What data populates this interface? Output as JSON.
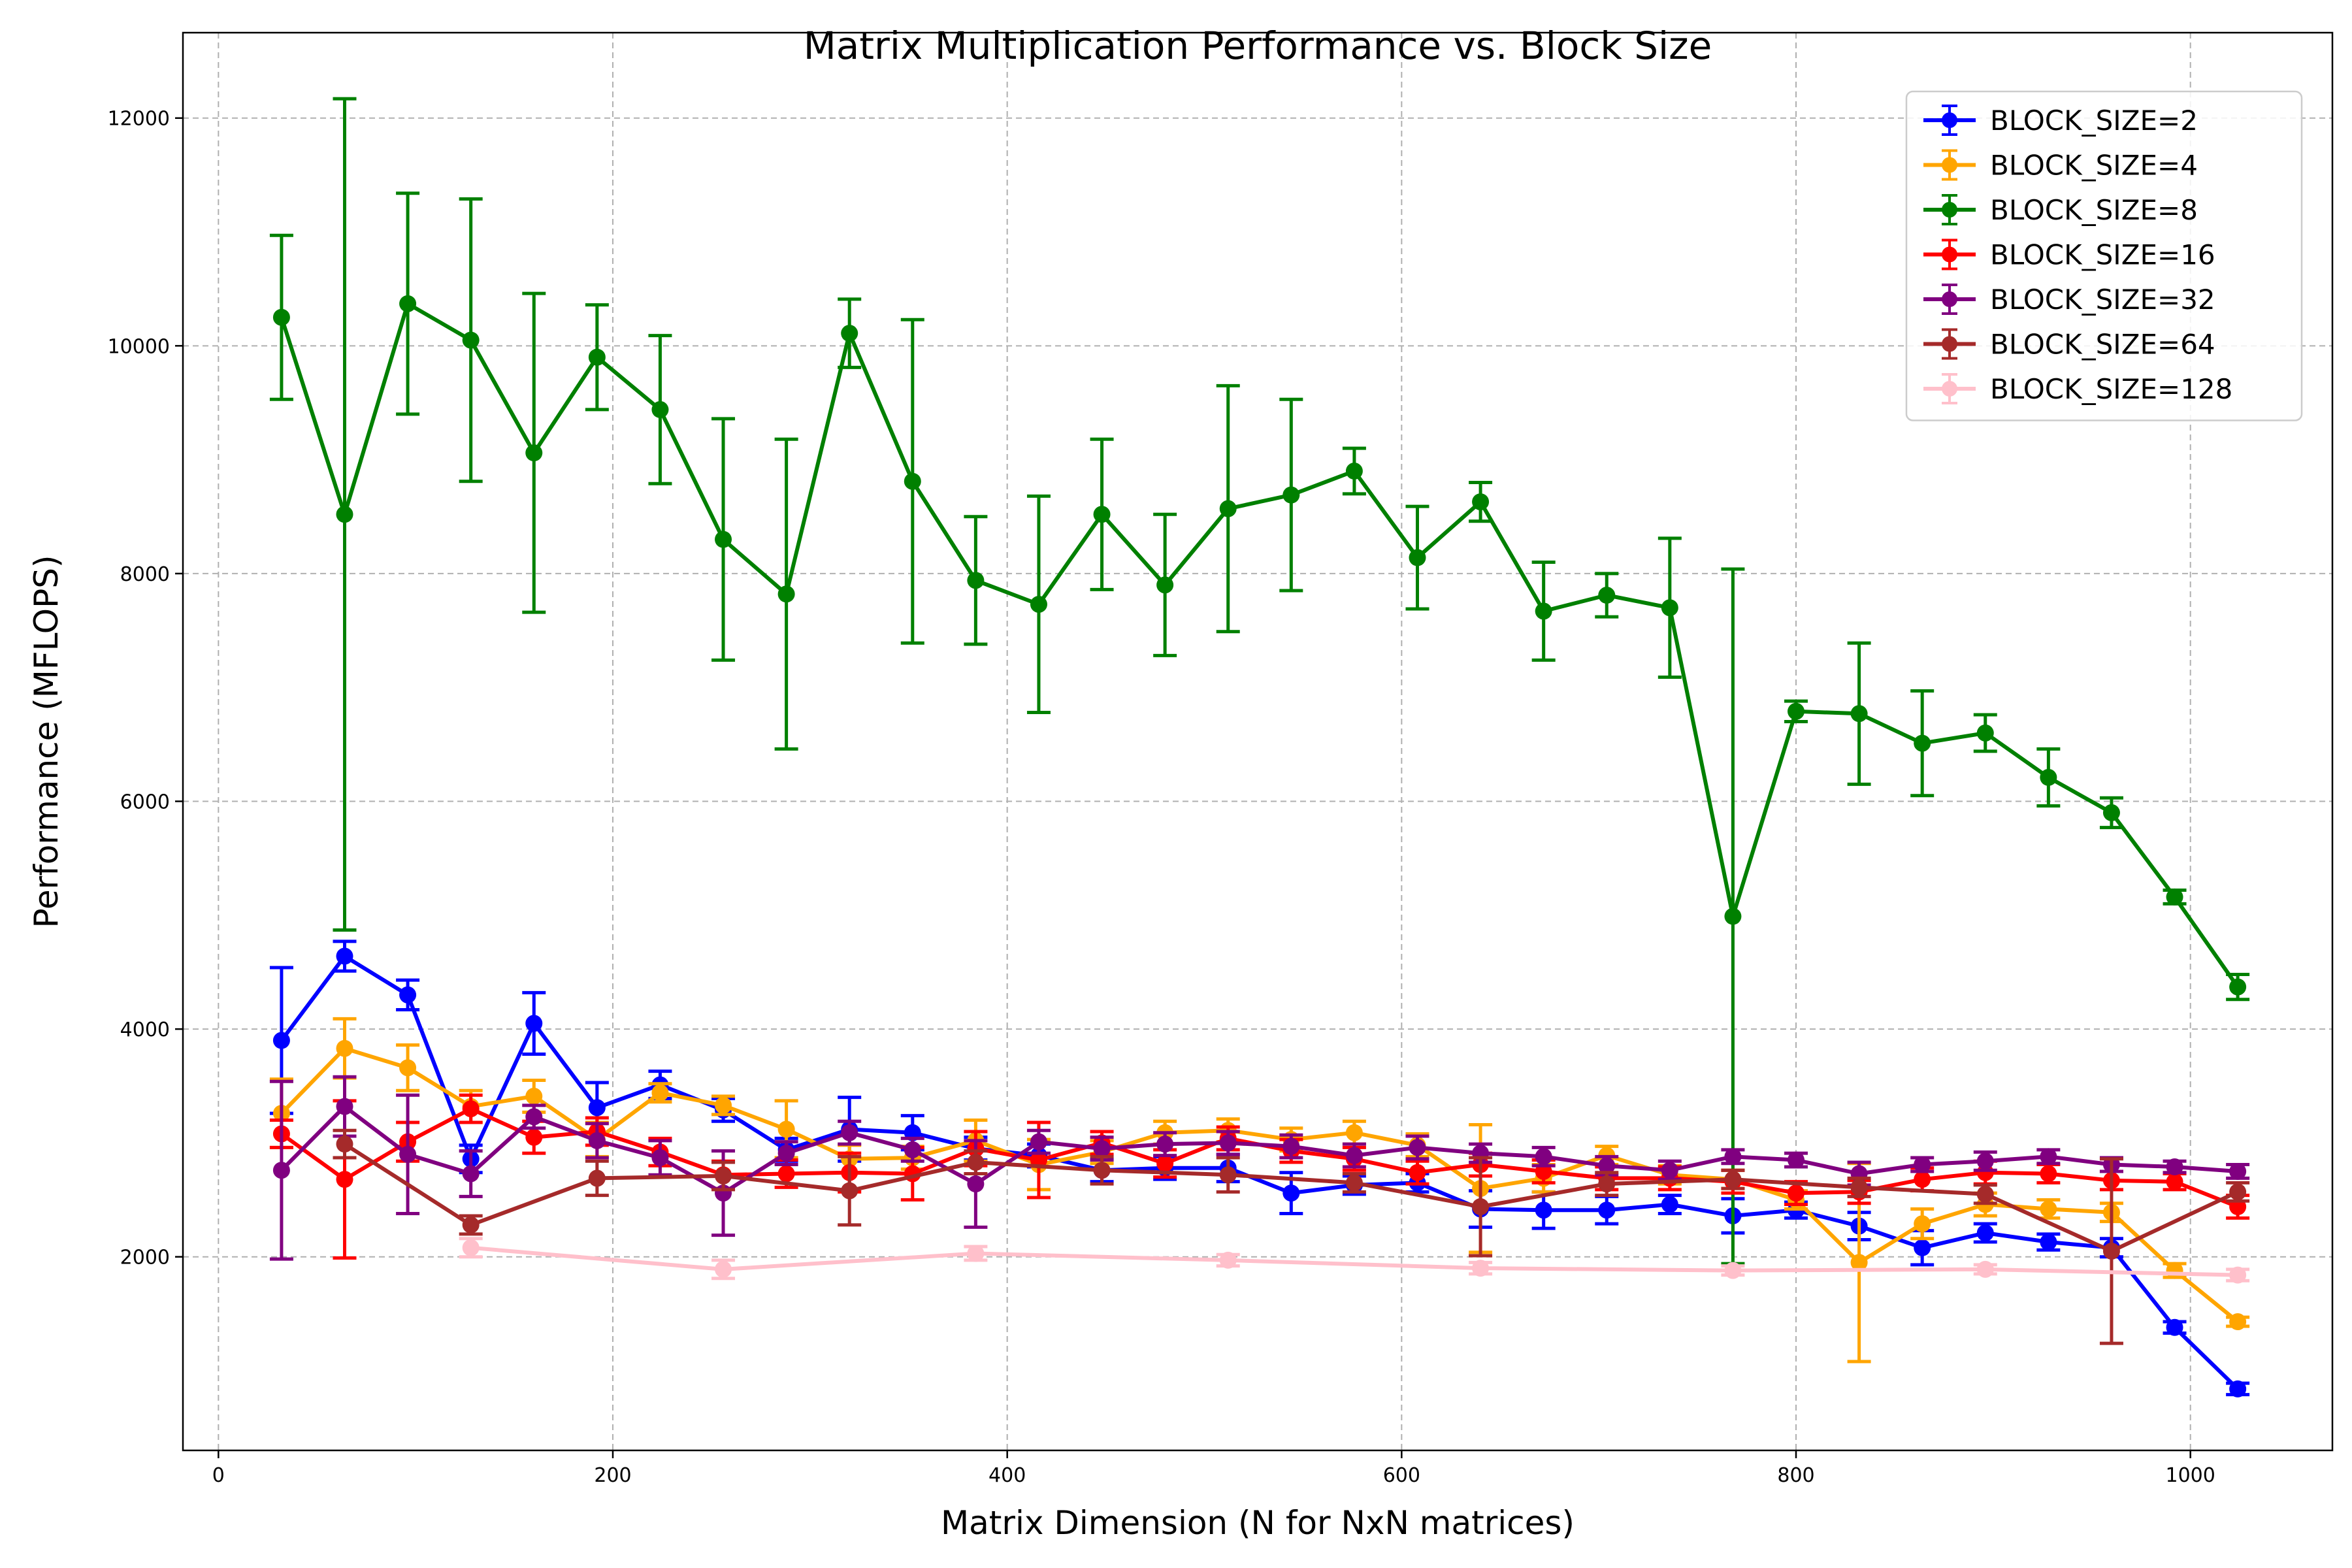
{
  "chart_data": {
    "type": "line",
    "title": "Matrix Multiplication Performance vs. Block Size",
    "xlabel": "Matrix Dimension (N for NxN matrices)",
    "ylabel": "Performance (MFLOPS)",
    "xlim": [
      -18,
      1072
    ],
    "ylim": [
      300,
      12750
    ],
    "xticks": [
      0,
      200,
      400,
      600,
      800,
      1000
    ],
    "yticks": [
      2000,
      4000,
      6000,
      8000,
      10000,
      12000
    ],
    "grid": true,
    "legend_position": "top-right",
    "error_bars": true,
    "series": [
      {
        "name": "BLOCK_SIZE=2",
        "color": "#0000ff",
        "points": [
          {
            "x": 32,
            "y": 3900,
            "err": 640
          },
          {
            "x": 64,
            "y": 4640,
            "err": 130
          },
          {
            "x": 96,
            "y": 4300,
            "err": 130
          },
          {
            "x": 128,
            "y": 2860,
            "err": 120
          },
          {
            "x": 160,
            "y": 4050,
            "err": 270
          },
          {
            "x": 192,
            "y": 3310,
            "err": 220
          },
          {
            "x": 224,
            "y": 3510,
            "err": 120
          },
          {
            "x": 256,
            "y": 3290,
            "err": 100
          },
          {
            "x": 288,
            "y": 2940,
            "err": 100
          },
          {
            "x": 320,
            "y": 3120,
            "err": 280
          },
          {
            "x": 352,
            "y": 3090,
            "err": 150
          },
          {
            "x": 384,
            "y": 2950,
            "err": 100
          },
          {
            "x": 416,
            "y": 2890,
            "err": 100
          },
          {
            "x": 448,
            "y": 2760,
            "err": 100
          },
          {
            "x": 480,
            "y": 2780,
            "err": 100
          },
          {
            "x": 512,
            "y": 2780,
            "err": 120
          },
          {
            "x": 544,
            "y": 2560,
            "err": 180
          },
          {
            "x": 576,
            "y": 2630,
            "err": 80
          },
          {
            "x": 608,
            "y": 2650,
            "err": 80
          },
          {
            "x": 640,
            "y": 2420,
            "err": 160
          },
          {
            "x": 672,
            "y": 2410,
            "err": 160
          },
          {
            "x": 704,
            "y": 2410,
            "err": 120
          },
          {
            "x": 736,
            "y": 2460,
            "err": 80
          },
          {
            "x": 768,
            "y": 2360,
            "err": 150
          },
          {
            "x": 800,
            "y": 2410,
            "err": 70
          },
          {
            "x": 832,
            "y": 2270,
            "err": 120
          },
          {
            "x": 864,
            "y": 2080,
            "err": 150
          },
          {
            "x": 896,
            "y": 2210,
            "err": 80
          },
          {
            "x": 928,
            "y": 2130,
            "err": 70
          },
          {
            "x": 960,
            "y": 2080,
            "err": 80
          },
          {
            "x": 992,
            "y": 1380,
            "err": 50
          },
          {
            "x": 1024,
            "y": 840,
            "err": 50
          }
        ]
      },
      {
        "name": "BLOCK_SIZE=4",
        "color": "#ffa500",
        "points": [
          {
            "x": 32,
            "y": 3260,
            "err": 300
          },
          {
            "x": 64,
            "y": 3830,
            "err": 260
          },
          {
            "x": 96,
            "y": 3660,
            "err": 200
          },
          {
            "x": 128,
            "y": 3320,
            "err": 140
          },
          {
            "x": 160,
            "y": 3410,
            "err": 140
          },
          {
            "x": 192,
            "y": 3030,
            "err": 150
          },
          {
            "x": 224,
            "y": 3440,
            "err": 80
          },
          {
            "x": 256,
            "y": 3330,
            "err": 80
          },
          {
            "x": 288,
            "y": 3120,
            "err": 250
          },
          {
            "x": 320,
            "y": 2860,
            "err": 120
          },
          {
            "x": 352,
            "y": 2870,
            "err": 100
          },
          {
            "x": 384,
            "y": 3020,
            "err": 180
          },
          {
            "x": 416,
            "y": 2810,
            "err": 220
          },
          {
            "x": 448,
            "y": 2920,
            "err": 100
          },
          {
            "x": 480,
            "y": 3090,
            "err": 100
          },
          {
            "x": 512,
            "y": 3110,
            "err": 100
          },
          {
            "x": 544,
            "y": 3030,
            "err": 100
          },
          {
            "x": 576,
            "y": 3090,
            "err": 100
          },
          {
            "x": 608,
            "y": 2980,
            "err": 100
          },
          {
            "x": 640,
            "y": 2600,
            "err": 560
          },
          {
            "x": 672,
            "y": 2690,
            "err": 120
          },
          {
            "x": 704,
            "y": 2890,
            "err": 80
          },
          {
            "x": 736,
            "y": 2720,
            "err": 80
          },
          {
            "x": 768,
            "y": 2680,
            "err": 80
          },
          {
            "x": 800,
            "y": 2500,
            "err": 80
          },
          {
            "x": 832,
            "y": 1950,
            "err": 870
          },
          {
            "x": 864,
            "y": 2290,
            "err": 130
          },
          {
            "x": 896,
            "y": 2460,
            "err": 100
          },
          {
            "x": 928,
            "y": 2420,
            "err": 80
          },
          {
            "x": 960,
            "y": 2390,
            "err": 80
          },
          {
            "x": 992,
            "y": 1880,
            "err": 60
          },
          {
            "x": 1024,
            "y": 1430,
            "err": 40
          }
        ]
      },
      {
        "name": "BLOCK_SIZE=8",
        "color": "#008000",
        "points": [
          {
            "x": 32,
            "y": 10250,
            "err": 720
          },
          {
            "x": 64,
            "y": 8520,
            "err": 3650
          },
          {
            "x": 96,
            "y": 10370,
            "err": 970
          },
          {
            "x": 128,
            "y": 10050,
            "err": 1240
          },
          {
            "x": 160,
            "y": 9060,
            "err": 1400
          },
          {
            "x": 192,
            "y": 9900,
            "err": 460
          },
          {
            "x": 224,
            "y": 9440,
            "err": 650
          },
          {
            "x": 256,
            "y": 8300,
            "err": 1060
          },
          {
            "x": 288,
            "y": 7820,
            "err": 1360
          },
          {
            "x": 320,
            "y": 10110,
            "err": 300
          },
          {
            "x": 352,
            "y": 8810,
            "err": 1420
          },
          {
            "x": 384,
            "y": 7940,
            "err": 560
          },
          {
            "x": 416,
            "y": 7730,
            "err": 950
          },
          {
            "x": 448,
            "y": 8520,
            "err": 660
          },
          {
            "x": 480,
            "y": 7900,
            "err": 620
          },
          {
            "x": 512,
            "y": 8570,
            "err": 1080
          },
          {
            "x": 544,
            "y": 8690,
            "err": 840
          },
          {
            "x": 576,
            "y": 8900,
            "err": 200
          },
          {
            "x": 608,
            "y": 8140,
            "err": 450
          },
          {
            "x": 640,
            "y": 8630,
            "err": 170
          },
          {
            "x": 672,
            "y": 7670,
            "err": 430
          },
          {
            "x": 704,
            "y": 7810,
            "err": 190
          },
          {
            "x": 736,
            "y": 7700,
            "err": 610
          },
          {
            "x": 768,
            "y": 4990,
            "err": 3050
          },
          {
            "x": 800,
            "y": 6790,
            "err": 90
          },
          {
            "x": 832,
            "y": 6770,
            "err": 620
          },
          {
            "x": 864,
            "y": 6510,
            "err": 460
          },
          {
            "x": 896,
            "y": 6600,
            "err": 160
          },
          {
            "x": 928,
            "y": 6210,
            "err": 250
          },
          {
            "x": 960,
            "y": 5900,
            "err": 130
          },
          {
            "x": 992,
            "y": 5160,
            "err": 60
          },
          {
            "x": 1024,
            "y": 4370,
            "err": 110
          }
        ]
      },
      {
        "name": "BLOCK_SIZE=16",
        "color": "#ff0000",
        "points": [
          {
            "x": 32,
            "y": 3080,
            "err": 120
          },
          {
            "x": 64,
            "y": 2680,
            "err": 690
          },
          {
            "x": 96,
            "y": 3010,
            "err": 170
          },
          {
            "x": 128,
            "y": 3300,
            "err": 120
          },
          {
            "x": 160,
            "y": 3050,
            "err": 140
          },
          {
            "x": 192,
            "y": 3100,
            "err": 120
          },
          {
            "x": 224,
            "y": 2920,
            "err": 120
          },
          {
            "x": 256,
            "y": 2720,
            "err": 120
          },
          {
            "x": 288,
            "y": 2730,
            "err": 120
          },
          {
            "x": 320,
            "y": 2740,
            "err": 170
          },
          {
            "x": 352,
            "y": 2730,
            "err": 230
          },
          {
            "x": 384,
            "y": 2950,
            "err": 150
          },
          {
            "x": 416,
            "y": 2850,
            "err": 330
          },
          {
            "x": 448,
            "y": 3000,
            "err": 100
          },
          {
            "x": 480,
            "y": 2820,
            "err": 120
          },
          {
            "x": 512,
            "y": 3040,
            "err": 100
          },
          {
            "x": 544,
            "y": 2930,
            "err": 100
          },
          {
            "x": 576,
            "y": 2860,
            "err": 100
          },
          {
            "x": 608,
            "y": 2740,
            "err": 100
          },
          {
            "x": 640,
            "y": 2810,
            "err": 100
          },
          {
            "x": 672,
            "y": 2750,
            "err": 100
          },
          {
            "x": 704,
            "y": 2690,
            "err": 100
          },
          {
            "x": 736,
            "y": 2690,
            "err": 100
          },
          {
            "x": 768,
            "y": 2660,
            "err": 100
          },
          {
            "x": 800,
            "y": 2560,
            "err": 100
          },
          {
            "x": 832,
            "y": 2570,
            "err": 100
          },
          {
            "x": 864,
            "y": 2680,
            "err": 100
          },
          {
            "x": 896,
            "y": 2740,
            "err": 100
          },
          {
            "x": 928,
            "y": 2730,
            "err": 80
          },
          {
            "x": 960,
            "y": 2670,
            "err": 80
          },
          {
            "x": 992,
            "y": 2660,
            "err": 70
          },
          {
            "x": 1024,
            "y": 2440,
            "err": 100
          }
        ]
      },
      {
        "name": "BLOCK_SIZE=32",
        "color": "#800080",
        "points": [
          {
            "x": 32,
            "y": 2760,
            "err": 780
          },
          {
            "x": 64,
            "y": 3320,
            "err": 260
          },
          {
            "x": 96,
            "y": 2900,
            "err": 520
          },
          {
            "x": 128,
            "y": 2730,
            "err": 200
          },
          {
            "x": 160,
            "y": 3230,
            "err": 100
          },
          {
            "x": 192,
            "y": 3020,
            "err": 150
          },
          {
            "x": 224,
            "y": 2870,
            "err": 150
          },
          {
            "x": 256,
            "y": 2560,
            "err": 370
          },
          {
            "x": 288,
            "y": 2910,
            "err": 100
          },
          {
            "x": 320,
            "y": 3090,
            "err": 100
          },
          {
            "x": 352,
            "y": 2940,
            "err": 100
          },
          {
            "x": 384,
            "y": 2640,
            "err": 380
          },
          {
            "x": 416,
            "y": 3010,
            "err": 100
          },
          {
            "x": 448,
            "y": 2950,
            "err": 100
          },
          {
            "x": 480,
            "y": 2990,
            "err": 100
          },
          {
            "x": 512,
            "y": 3000,
            "err": 100
          },
          {
            "x": 544,
            "y": 2970,
            "err": 100
          },
          {
            "x": 576,
            "y": 2890,
            "err": 100
          },
          {
            "x": 608,
            "y": 2960,
            "err": 100
          },
          {
            "x": 640,
            "y": 2910,
            "err": 80
          },
          {
            "x": 672,
            "y": 2880,
            "err": 80
          },
          {
            "x": 704,
            "y": 2800,
            "err": 80
          },
          {
            "x": 736,
            "y": 2760,
            "err": 80
          },
          {
            "x": 768,
            "y": 2880,
            "err": 60
          },
          {
            "x": 800,
            "y": 2850,
            "err": 60
          },
          {
            "x": 832,
            "y": 2730,
            "err": 100
          },
          {
            "x": 864,
            "y": 2810,
            "err": 60
          },
          {
            "x": 896,
            "y": 2840,
            "err": 80
          },
          {
            "x": 928,
            "y": 2880,
            "err": 60
          },
          {
            "x": 960,
            "y": 2810,
            "err": 60
          },
          {
            "x": 992,
            "y": 2790,
            "err": 50
          },
          {
            "x": 1024,
            "y": 2750,
            "err": 60
          }
        ]
      },
      {
        "name": "BLOCK_SIZE=64",
        "color": "#a52a2a",
        "points": [
          {
            "x": 64,
            "y": 2990,
            "err": 120
          },
          {
            "x": 128,
            "y": 2280,
            "err": 80
          },
          {
            "x": 192,
            "y": 2690,
            "err": 150
          },
          {
            "x": 256,
            "y": 2710,
            "err": 120
          },
          {
            "x": 320,
            "y": 2580,
            "err": 300
          },
          {
            "x": 384,
            "y": 2830,
            "err": 100
          },
          {
            "x": 448,
            "y": 2760,
            "err": 120
          },
          {
            "x": 512,
            "y": 2720,
            "err": 150
          },
          {
            "x": 576,
            "y": 2650,
            "err": 80
          },
          {
            "x": 640,
            "y": 2440,
            "err": 430
          },
          {
            "x": 704,
            "y": 2640,
            "err": 100
          },
          {
            "x": 768,
            "y": 2680,
            "err": 80
          },
          {
            "x": 832,
            "y": 2610,
            "err": 80
          },
          {
            "x": 896,
            "y": 2550,
            "err": 80
          },
          {
            "x": 960,
            "y": 2050,
            "err": 810
          },
          {
            "x": 1024,
            "y": 2570,
            "err": 80
          }
        ]
      },
      {
        "name": "BLOCK_SIZE=128",
        "color": "#ffc0cb",
        "points": [
          {
            "x": 128,
            "y": 2080,
            "err": 80
          },
          {
            "x": 256,
            "y": 1890,
            "err": 80
          },
          {
            "x": 384,
            "y": 2030,
            "err": 60
          },
          {
            "x": 512,
            "y": 1970,
            "err": 50
          },
          {
            "x": 640,
            "y": 1900,
            "err": 50
          },
          {
            "x": 768,
            "y": 1880,
            "err": 40
          },
          {
            "x": 896,
            "y": 1890,
            "err": 40
          },
          {
            "x": 1024,
            "y": 1840,
            "err": 50
          }
        ]
      }
    ]
  }
}
